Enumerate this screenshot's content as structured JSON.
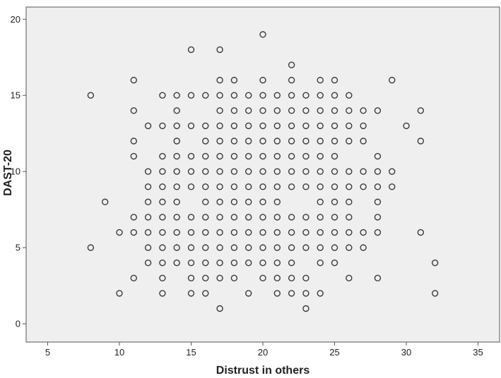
{
  "chart_data": {
    "type": "scatter",
    "title": "",
    "xlabel": "Distrust in others",
    "ylabel": "DAST-20",
    "xlim": [
      3.5,
      36.5
    ],
    "ylim": [
      -1.2,
      20.8
    ],
    "x_ticks": [
      5,
      10,
      15,
      20,
      25,
      30,
      35
    ],
    "y_ticks": [
      0,
      5,
      10,
      15,
      20
    ],
    "grid": false,
    "legend": "none",
    "colors": {
      "plot_background": "#efefef",
      "marker_stroke": "#3a3a3a",
      "frame": "#555555"
    },
    "points": [
      {
        "x": 8,
        "y": 15
      },
      {
        "x": 8,
        "y": 5
      },
      {
        "x": 9,
        "y": 8
      },
      {
        "x": 10,
        "y": 6
      },
      {
        "x": 10,
        "y": 2
      },
      {
        "x": 11,
        "y": 16
      },
      {
        "x": 11,
        "y": 14
      },
      {
        "x": 11,
        "y": 12
      },
      {
        "x": 11,
        "y": 11
      },
      {
        "x": 11,
        "y": 7
      },
      {
        "x": 11,
        "y": 6
      },
      {
        "x": 11,
        "y": 3
      },
      {
        "x": 12,
        "y": 13
      },
      {
        "x": 12,
        "y": 10
      },
      {
        "x": 12,
        "y": 9
      },
      {
        "x": 12,
        "y": 8
      },
      {
        "x": 12,
        "y": 7
      },
      {
        "x": 12,
        "y": 6
      },
      {
        "x": 12,
        "y": 5
      },
      {
        "x": 12,
        "y": 4
      },
      {
        "x": 13,
        "y": 15
      },
      {
        "x": 13,
        "y": 13
      },
      {
        "x": 13,
        "y": 11
      },
      {
        "x": 13,
        "y": 10
      },
      {
        "x": 13,
        "y": 9
      },
      {
        "x": 13,
        "y": 8
      },
      {
        "x": 13,
        "y": 7
      },
      {
        "x": 13,
        "y": 6
      },
      {
        "x": 13,
        "y": 5
      },
      {
        "x": 13,
        "y": 4
      },
      {
        "x": 13,
        "y": 3
      },
      {
        "x": 13,
        "y": 2
      },
      {
        "x": 14,
        "y": 15
      },
      {
        "x": 14,
        "y": 14
      },
      {
        "x": 14,
        "y": 13
      },
      {
        "x": 14,
        "y": 12
      },
      {
        "x": 14,
        "y": 11
      },
      {
        "x": 14,
        "y": 10
      },
      {
        "x": 14,
        "y": 9
      },
      {
        "x": 14,
        "y": 8
      },
      {
        "x": 14,
        "y": 7
      },
      {
        "x": 14,
        "y": 6
      },
      {
        "x": 14,
        "y": 5
      },
      {
        "x": 14,
        "y": 4
      },
      {
        "x": 15,
        "y": 18
      },
      {
        "x": 15,
        "y": 15
      },
      {
        "x": 15,
        "y": 13
      },
      {
        "x": 15,
        "y": 11
      },
      {
        "x": 15,
        "y": 10
      },
      {
        "x": 15,
        "y": 9
      },
      {
        "x": 15,
        "y": 7
      },
      {
        "x": 15,
        "y": 6
      },
      {
        "x": 15,
        "y": 5
      },
      {
        "x": 15,
        "y": 4
      },
      {
        "x": 15,
        "y": 3
      },
      {
        "x": 15,
        "y": 2
      },
      {
        "x": 16,
        "y": 15
      },
      {
        "x": 16,
        "y": 13
      },
      {
        "x": 16,
        "y": 12
      },
      {
        "x": 16,
        "y": 11
      },
      {
        "x": 16,
        "y": 10
      },
      {
        "x": 16,
        "y": 9
      },
      {
        "x": 16,
        "y": 8
      },
      {
        "x": 16,
        "y": 7
      },
      {
        "x": 16,
        "y": 6
      },
      {
        "x": 16,
        "y": 5
      },
      {
        "x": 16,
        "y": 4
      },
      {
        "x": 16,
        "y": 3
      },
      {
        "x": 16,
        "y": 2
      },
      {
        "x": 17,
        "y": 18
      },
      {
        "x": 17,
        "y": 16
      },
      {
        "x": 17,
        "y": 15
      },
      {
        "x": 17,
        "y": 14
      },
      {
        "x": 17,
        "y": 13
      },
      {
        "x": 17,
        "y": 12
      },
      {
        "x": 17,
        "y": 11
      },
      {
        "x": 17,
        "y": 10
      },
      {
        "x": 17,
        "y": 9
      },
      {
        "x": 17,
        "y": 8
      },
      {
        "x": 17,
        "y": 7
      },
      {
        "x": 17,
        "y": 6
      },
      {
        "x": 17,
        "y": 5
      },
      {
        "x": 17,
        "y": 4
      },
      {
        "x": 17,
        "y": 3
      },
      {
        "x": 17,
        "y": 1
      },
      {
        "x": 18,
        "y": 16
      },
      {
        "x": 18,
        "y": 15
      },
      {
        "x": 18,
        "y": 14
      },
      {
        "x": 18,
        "y": 13
      },
      {
        "x": 18,
        "y": 12
      },
      {
        "x": 18,
        "y": 11
      },
      {
        "x": 18,
        "y": 10
      },
      {
        "x": 18,
        "y": 9
      },
      {
        "x": 18,
        "y": 8
      },
      {
        "x": 18,
        "y": 7
      },
      {
        "x": 18,
        "y": 6
      },
      {
        "x": 18,
        "y": 5
      },
      {
        "x": 18,
        "y": 4
      },
      {
        "x": 18,
        "y": 3
      },
      {
        "x": 19,
        "y": 15
      },
      {
        "x": 19,
        "y": 14
      },
      {
        "x": 19,
        "y": 13
      },
      {
        "x": 19,
        "y": 12
      },
      {
        "x": 19,
        "y": 11
      },
      {
        "x": 19,
        "y": 10
      },
      {
        "x": 19,
        "y": 9
      },
      {
        "x": 19,
        "y": 8
      },
      {
        "x": 19,
        "y": 7
      },
      {
        "x": 19,
        "y": 6
      },
      {
        "x": 19,
        "y": 5
      },
      {
        "x": 19,
        "y": 4
      },
      {
        "x": 19,
        "y": 2
      },
      {
        "x": 20,
        "y": 19
      },
      {
        "x": 20,
        "y": 16
      },
      {
        "x": 20,
        "y": 15
      },
      {
        "x": 20,
        "y": 14
      },
      {
        "x": 20,
        "y": 13
      },
      {
        "x": 20,
        "y": 12
      },
      {
        "x": 20,
        "y": 11
      },
      {
        "x": 20,
        "y": 10
      },
      {
        "x": 20,
        "y": 9
      },
      {
        "x": 20,
        "y": 8
      },
      {
        "x": 20,
        "y": 7
      },
      {
        "x": 20,
        "y": 6
      },
      {
        "x": 20,
        "y": 5
      },
      {
        "x": 20,
        "y": 4
      },
      {
        "x": 20,
        "y": 3
      },
      {
        "x": 21,
        "y": 15
      },
      {
        "x": 21,
        "y": 14
      },
      {
        "x": 21,
        "y": 13
      },
      {
        "x": 21,
        "y": 12
      },
      {
        "x": 21,
        "y": 11
      },
      {
        "x": 21,
        "y": 10
      },
      {
        "x": 21,
        "y": 9
      },
      {
        "x": 21,
        "y": 8
      },
      {
        "x": 21,
        "y": 7
      },
      {
        "x": 21,
        "y": 6
      },
      {
        "x": 21,
        "y": 5
      },
      {
        "x": 21,
        "y": 4
      },
      {
        "x": 21,
        "y": 3
      },
      {
        "x": 21,
        "y": 2
      },
      {
        "x": 22,
        "y": 17
      },
      {
        "x": 22,
        "y": 16
      },
      {
        "x": 22,
        "y": 15
      },
      {
        "x": 22,
        "y": 14
      },
      {
        "x": 22,
        "y": 13
      },
      {
        "x": 22,
        "y": 12
      },
      {
        "x": 22,
        "y": 11
      },
      {
        "x": 22,
        "y": 10
      },
      {
        "x": 22,
        "y": 9
      },
      {
        "x": 22,
        "y": 7
      },
      {
        "x": 22,
        "y": 6
      },
      {
        "x": 22,
        "y": 5
      },
      {
        "x": 22,
        "y": 4
      },
      {
        "x": 22,
        "y": 3
      },
      {
        "x": 22,
        "y": 2
      },
      {
        "x": 23,
        "y": 15
      },
      {
        "x": 23,
        "y": 14
      },
      {
        "x": 23,
        "y": 13
      },
      {
        "x": 23,
        "y": 12
      },
      {
        "x": 23,
        "y": 11
      },
      {
        "x": 23,
        "y": 10
      },
      {
        "x": 23,
        "y": 9
      },
      {
        "x": 23,
        "y": 7
      },
      {
        "x": 23,
        "y": 6
      },
      {
        "x": 23,
        "y": 5
      },
      {
        "x": 23,
        "y": 3
      },
      {
        "x": 23,
        "y": 2
      },
      {
        "x": 23,
        "y": 1
      },
      {
        "x": 24,
        "y": 16
      },
      {
        "x": 24,
        "y": 15
      },
      {
        "x": 24,
        "y": 14
      },
      {
        "x": 24,
        "y": 13
      },
      {
        "x": 24,
        "y": 12
      },
      {
        "x": 24,
        "y": 11
      },
      {
        "x": 24,
        "y": 10
      },
      {
        "x": 24,
        "y": 9
      },
      {
        "x": 24,
        "y": 8
      },
      {
        "x": 24,
        "y": 7
      },
      {
        "x": 24,
        "y": 6
      },
      {
        "x": 24,
        "y": 5
      },
      {
        "x": 24,
        "y": 4
      },
      {
        "x": 24,
        "y": 2
      },
      {
        "x": 25,
        "y": 16
      },
      {
        "x": 25,
        "y": 15
      },
      {
        "x": 25,
        "y": 14
      },
      {
        "x": 25,
        "y": 13
      },
      {
        "x": 25,
        "y": 12
      },
      {
        "x": 25,
        "y": 11
      },
      {
        "x": 25,
        "y": 10
      },
      {
        "x": 25,
        "y": 9
      },
      {
        "x": 25,
        "y": 8
      },
      {
        "x": 25,
        "y": 7
      },
      {
        "x": 25,
        "y": 6
      },
      {
        "x": 25,
        "y": 5
      },
      {
        "x": 25,
        "y": 4
      },
      {
        "x": 26,
        "y": 15
      },
      {
        "x": 26,
        "y": 14
      },
      {
        "x": 26,
        "y": 13
      },
      {
        "x": 26,
        "y": 12
      },
      {
        "x": 26,
        "y": 10
      },
      {
        "x": 26,
        "y": 9
      },
      {
        "x": 26,
        "y": 8
      },
      {
        "x": 26,
        "y": 7
      },
      {
        "x": 26,
        "y": 6
      },
      {
        "x": 26,
        "y": 5
      },
      {
        "x": 26,
        "y": 3
      },
      {
        "x": 27,
        "y": 14
      },
      {
        "x": 27,
        "y": 13
      },
      {
        "x": 27,
        "y": 12
      },
      {
        "x": 27,
        "y": 10
      },
      {
        "x": 27,
        "y": 9
      },
      {
        "x": 27,
        "y": 6
      },
      {
        "x": 27,
        "y": 5
      },
      {
        "x": 28,
        "y": 14
      },
      {
        "x": 28,
        "y": 11
      },
      {
        "x": 28,
        "y": 10
      },
      {
        "x": 28,
        "y": 9
      },
      {
        "x": 28,
        "y": 8
      },
      {
        "x": 28,
        "y": 7
      },
      {
        "x": 28,
        "y": 6
      },
      {
        "x": 28,
        "y": 3
      },
      {
        "x": 29,
        "y": 16
      },
      {
        "x": 29,
        "y": 10
      },
      {
        "x": 29,
        "y": 9
      },
      {
        "x": 30,
        "y": 13
      },
      {
        "x": 31,
        "y": 14
      },
      {
        "x": 31,
        "y": 12
      },
      {
        "x": 31,
        "y": 6
      },
      {
        "x": 32,
        "y": 4
      },
      {
        "x": 32,
        "y": 2
      }
    ]
  }
}
